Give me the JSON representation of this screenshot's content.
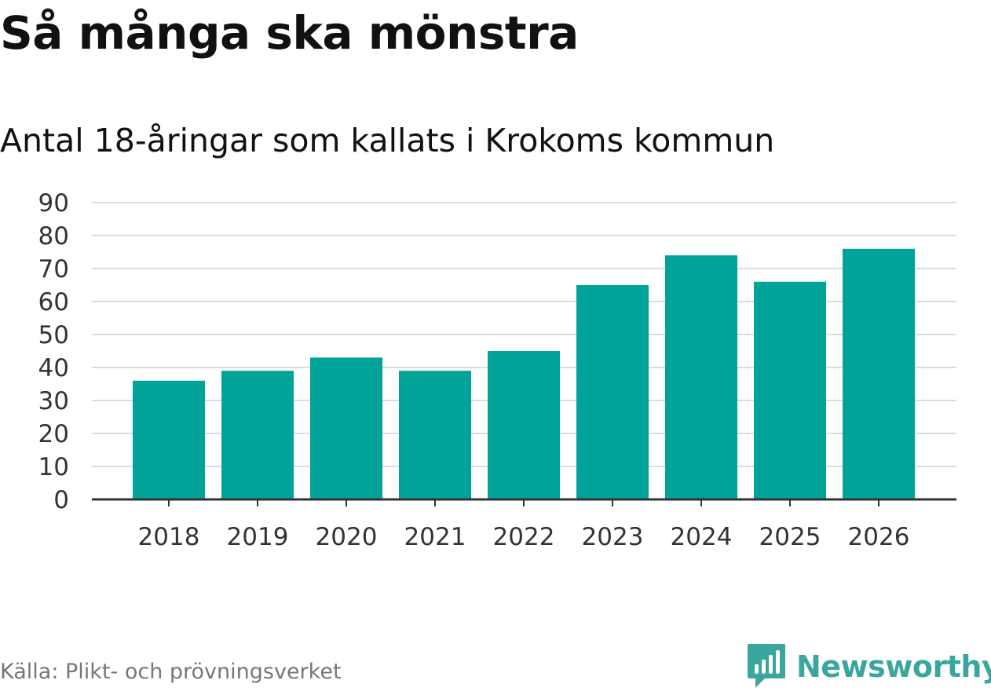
{
  "chart_data": {
    "type": "bar",
    "title": "Så många ska mönstra",
    "subtitle": "Antal 18-åringar som kallats i Krokoms kommun",
    "categories": [
      "2018",
      "2019",
      "2020",
      "2021",
      "2022",
      "2023",
      "2024",
      "2025",
      "2026"
    ],
    "values": [
      36,
      39,
      43,
      39,
      45,
      65,
      74,
      66,
      76
    ],
    "yticks": [
      "0",
      "10",
      "20",
      "30",
      "40",
      "50",
      "60",
      "70",
      "80",
      "90"
    ],
    "ylim": [
      0,
      90
    ],
    "xlabel": "",
    "ylabel": "",
    "grid": true,
    "bar_color": "#00a39a",
    "grid_color": "#dcdcdc",
    "axis_color": "#333333"
  },
  "footer": {
    "source": "Källa: Plikt- och prövningsverket",
    "brand": "Newsworthy",
    "brand_icon": "newsworthy-logo-icon",
    "brand_color": "#3aa69e"
  }
}
